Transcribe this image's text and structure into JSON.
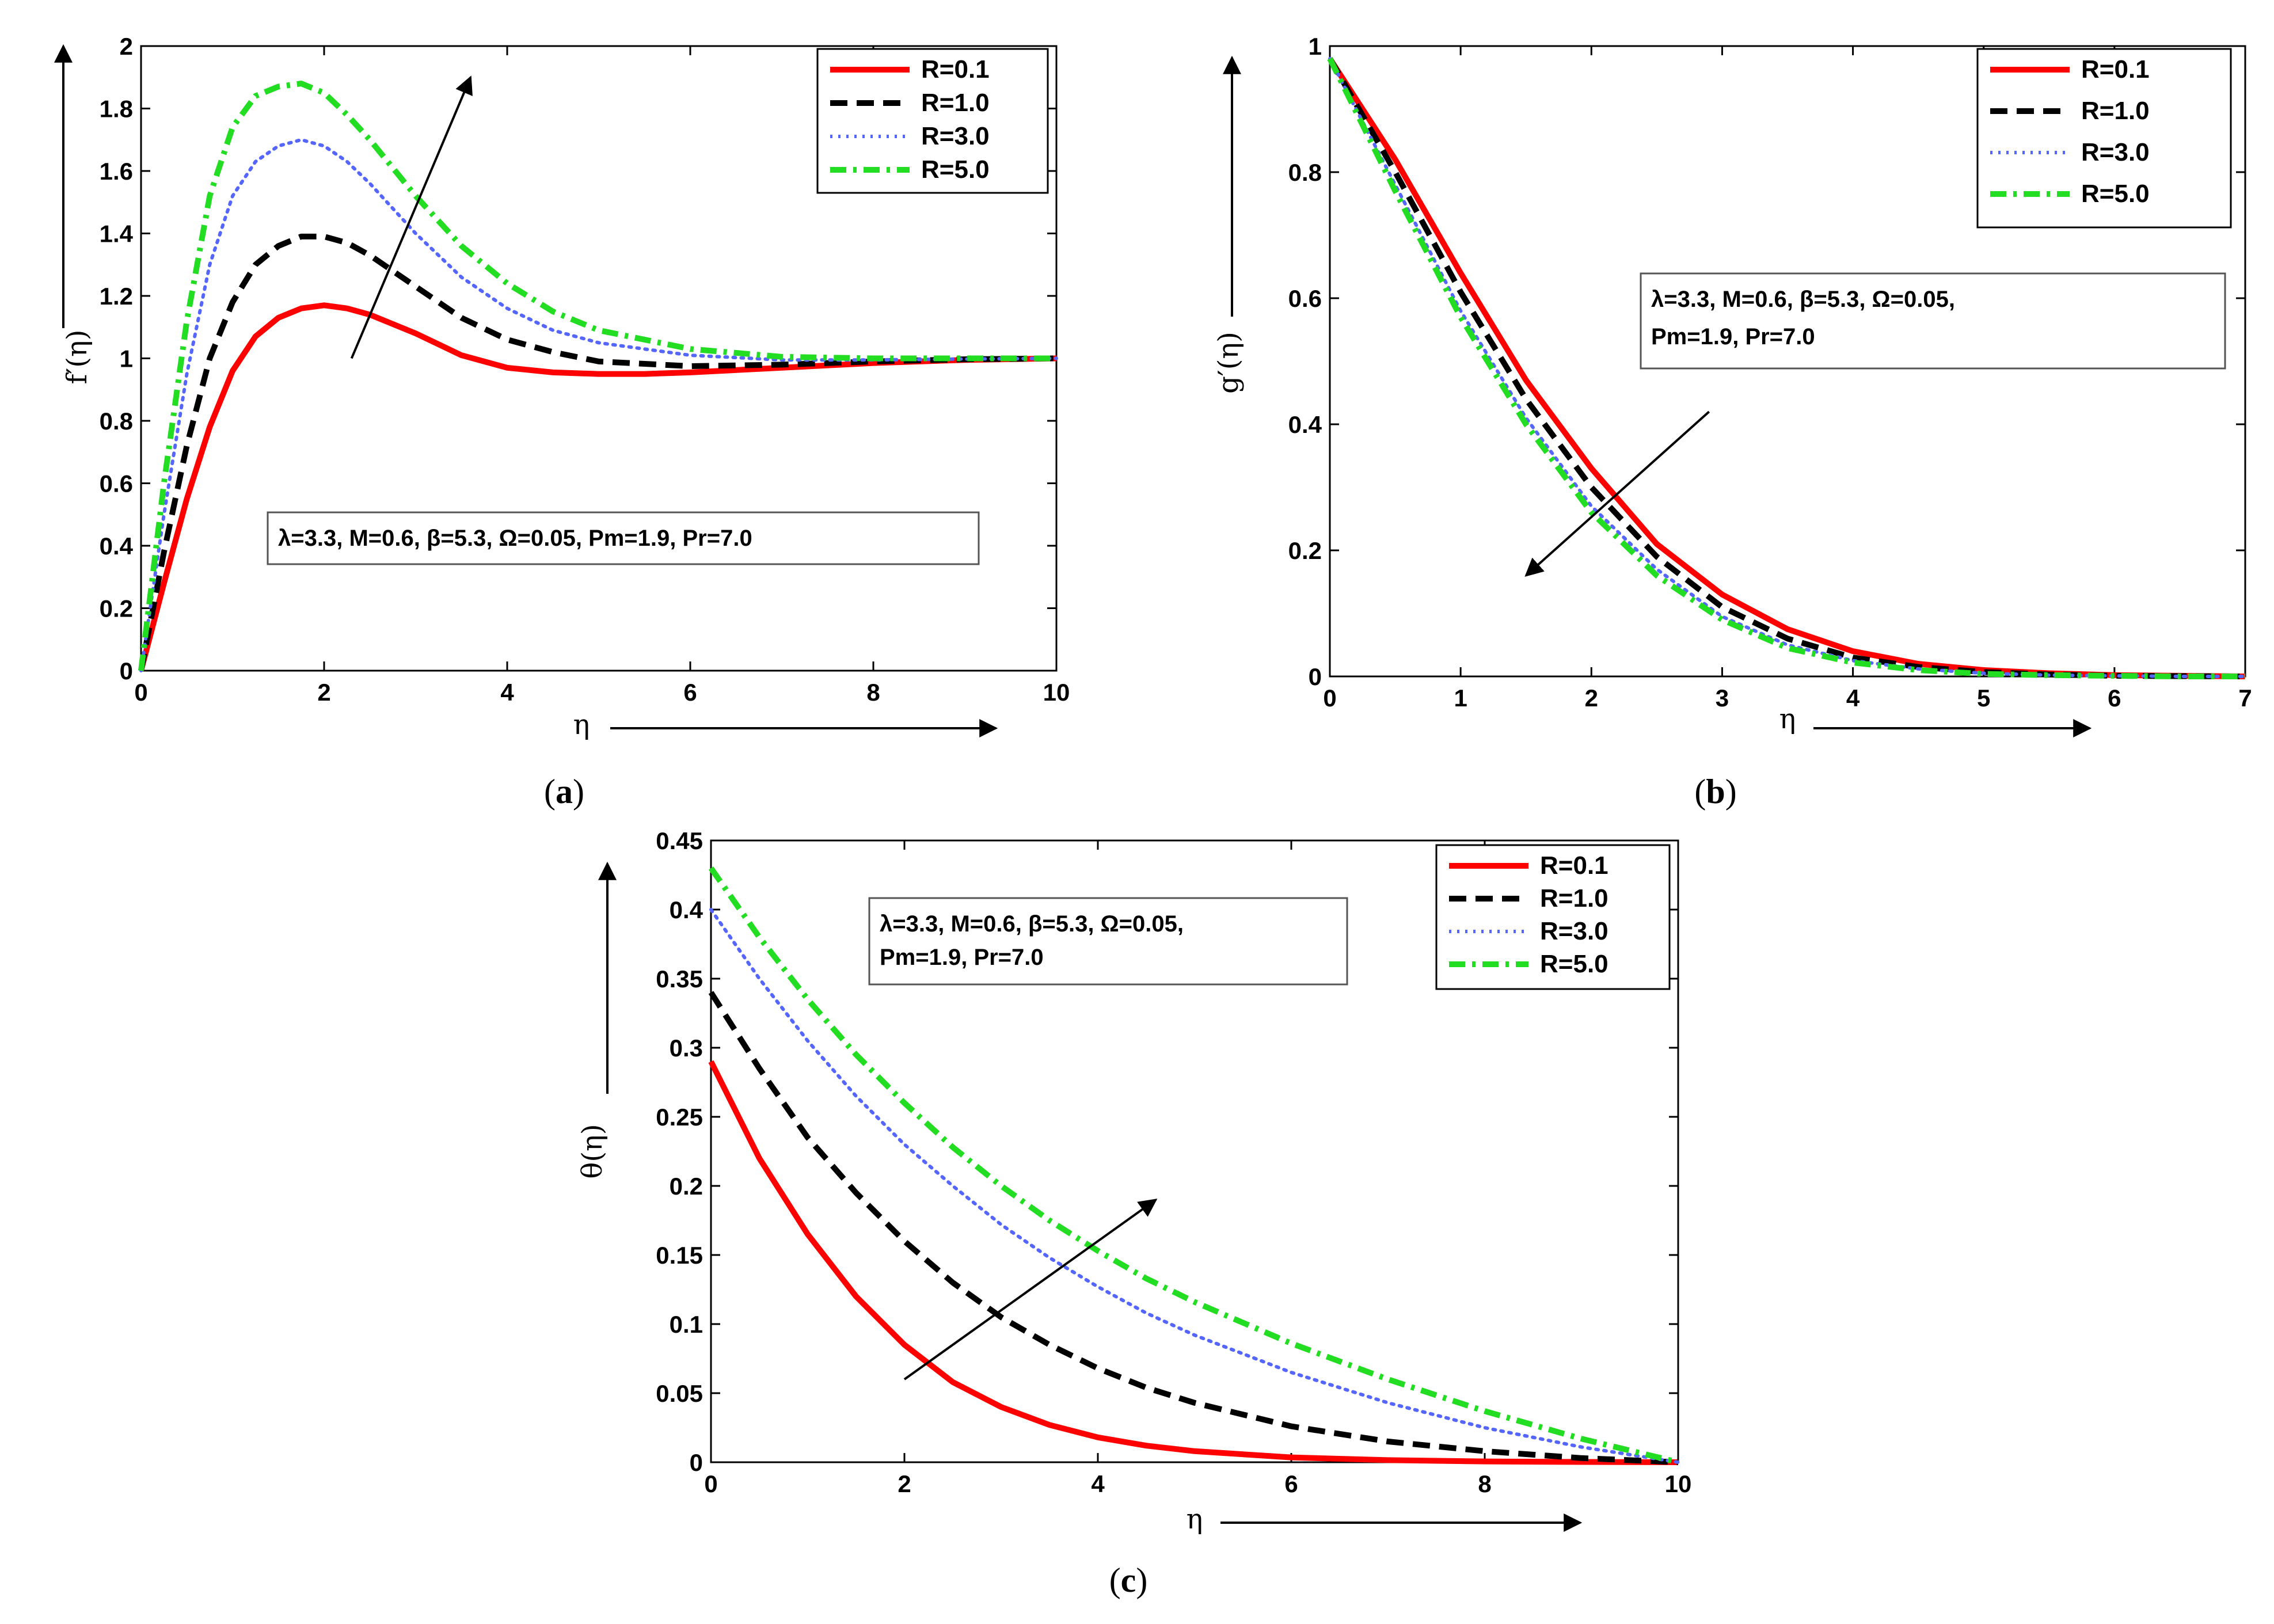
{
  "chart_data": [
    {
      "id": "a",
      "type": "line",
      "caption_letter": "a",
      "xlabel": "η",
      "ylabel": "f′(η)",
      "xlim": [
        0,
        10
      ],
      "ylim": [
        0,
        2
      ],
      "xticks": [
        0,
        2,
        4,
        6,
        8,
        10
      ],
      "yticks": [
        0,
        0.2,
        0.4,
        0.6,
        0.8,
        1,
        1.2,
        1.4,
        1.6,
        1.8,
        2
      ],
      "ytick_labels": [
        "0",
        "0.2",
        "0.4",
        "0.6",
        "0.8",
        "1",
        "1.2",
        "1.4",
        "1.6",
        "1.8",
        "2"
      ],
      "annotation": [
        "λ=3.3, M=0.6, β=5.3, Ω=0.05, Pm=1.9, Pr=7.0"
      ],
      "arrow": {
        "from": [
          2.3,
          1.0
        ],
        "to": [
          3.6,
          1.9
        ]
      },
      "legend_position": "top-right",
      "series": [
        {
          "name": "R=0.1",
          "color": "#ff0000",
          "style": "solid",
          "x": [
            0,
            0.25,
            0.5,
            0.75,
            1,
            1.25,
            1.5,
            1.75,
            2,
            2.25,
            2.5,
            3,
            3.5,
            4,
            4.5,
            5,
            5.5,
            6,
            7,
            8,
            9,
            10
          ],
          "y": [
            0,
            0.28,
            0.55,
            0.78,
            0.96,
            1.07,
            1.13,
            1.16,
            1.17,
            1.16,
            1.14,
            1.08,
            1.01,
            0.97,
            0.955,
            0.95,
            0.95,
            0.955,
            0.97,
            0.985,
            0.995,
            1.0
          ]
        },
        {
          "name": "R=1.0",
          "color": "#000000",
          "style": "dashed",
          "x": [
            0,
            0.25,
            0.5,
            0.75,
            1,
            1.25,
            1.5,
            1.75,
            2,
            2.25,
            2.5,
            3,
            3.5,
            4,
            4.5,
            5,
            6,
            7,
            8,
            9,
            10
          ],
          "y": [
            0,
            0.38,
            0.72,
            1.0,
            1.18,
            1.3,
            1.36,
            1.39,
            1.39,
            1.37,
            1.33,
            1.23,
            1.13,
            1.06,
            1.02,
            0.99,
            0.975,
            0.98,
            0.99,
            0.997,
            1.0
          ]
        },
        {
          "name": "R=3.0",
          "color": "#5566ff",
          "style": "dotted",
          "x": [
            0,
            0.25,
            0.5,
            0.75,
            1,
            1.25,
            1.5,
            1.75,
            2,
            2.25,
            2.5,
            3,
            3.5,
            4,
            4.5,
            5,
            6,
            7,
            8,
            9,
            10
          ],
          "y": [
            0,
            0.5,
            0.95,
            1.3,
            1.52,
            1.63,
            1.68,
            1.7,
            1.68,
            1.63,
            1.56,
            1.4,
            1.26,
            1.16,
            1.09,
            1.05,
            1.01,
            0.995,
            0.995,
            0.998,
            1.0
          ]
        },
        {
          "name": "R=5.0",
          "color": "#22dd22",
          "style": "dashdot",
          "x": [
            0,
            0.25,
            0.5,
            0.75,
            1,
            1.25,
            1.5,
            1.75,
            2,
            2.25,
            2.5,
            3,
            3.5,
            4,
            4.5,
            5,
            6,
            7,
            8,
            9,
            10
          ],
          "y": [
            0,
            0.6,
            1.12,
            1.52,
            1.74,
            1.84,
            1.87,
            1.88,
            1.85,
            1.78,
            1.7,
            1.52,
            1.36,
            1.24,
            1.15,
            1.09,
            1.03,
            1.005,
            1.0,
            1.0,
            1.0
          ]
        }
      ]
    },
    {
      "id": "b",
      "type": "line",
      "caption_letter": "b",
      "xlabel": "η",
      "ylabel": "g′(η)",
      "xlim": [
        0,
        7
      ],
      "ylim": [
        0,
        1
      ],
      "xticks": [
        0,
        1,
        2,
        3,
        4,
        5,
        6,
        7
      ],
      "yticks": [
        0,
        0.2,
        0.4,
        0.6,
        0.8,
        1
      ],
      "ytick_labels": [
        "0",
        "0.2",
        "0.4",
        "0.6",
        "0.8",
        "1"
      ],
      "annotation": [
        "λ=3.3, M=0.6, β=5.3, Ω=0.05,",
        "Pm=1.9, Pr=7.0"
      ],
      "arrow": {
        "from": [
          2.9,
          0.42
        ],
        "to": [
          1.5,
          0.16
        ]
      },
      "legend_position": "top-right",
      "series": [
        {
          "name": "R=0.1",
          "color": "#ff0000",
          "style": "solid",
          "x": [
            0,
            0.5,
            1,
            1.5,
            2,
            2.5,
            3,
            3.5,
            4,
            4.5,
            5,
            5.5,
            6,
            6.5,
            7
          ],
          "y": [
            0.98,
            0.82,
            0.64,
            0.47,
            0.33,
            0.21,
            0.13,
            0.075,
            0.04,
            0.02,
            0.01,
            0.005,
            0.002,
            0.001,
            0
          ]
        },
        {
          "name": "R=1.0",
          "color": "#000000",
          "style": "dashed",
          "x": [
            0,
            0.5,
            1,
            1.5,
            2,
            2.5,
            3,
            3.5,
            4,
            4.5,
            5,
            5.5,
            6,
            6.5,
            7
          ],
          "y": [
            0.98,
            0.8,
            0.61,
            0.44,
            0.3,
            0.19,
            0.11,
            0.06,
            0.03,
            0.015,
            0.007,
            0.003,
            0.001,
            0.0005,
            0
          ]
        },
        {
          "name": "R=3.0",
          "color": "#5566ff",
          "style": "dotted",
          "x": [
            0,
            0.5,
            1,
            1.5,
            2,
            2.5,
            3,
            3.5,
            4,
            4.5,
            5,
            5.5,
            6,
            6.5,
            7
          ],
          "y": [
            0.98,
            0.78,
            0.58,
            0.41,
            0.27,
            0.17,
            0.095,
            0.05,
            0.025,
            0.012,
            0.005,
            0.002,
            0.001,
            0,
            0
          ]
        },
        {
          "name": "R=5.0",
          "color": "#22dd22",
          "style": "dashdot",
          "x": [
            0,
            0.5,
            1,
            1.5,
            2,
            2.5,
            3,
            3.5,
            4,
            4.5,
            5,
            5.5,
            6,
            6.5,
            7
          ],
          "y": [
            0.98,
            0.77,
            0.57,
            0.4,
            0.26,
            0.16,
            0.09,
            0.045,
            0.022,
            0.01,
            0.004,
            0.002,
            0.001,
            0,
            0
          ]
        }
      ]
    },
    {
      "id": "c",
      "type": "line",
      "caption_letter": "c",
      "xlabel": "η",
      "ylabel": "θ(η)",
      "xlim": [
        0,
        10
      ],
      "ylim": [
        0,
        0.45
      ],
      "xticks": [
        0,
        2,
        4,
        6,
        8,
        10
      ],
      "yticks": [
        0,
        0.05,
        0.1,
        0.15,
        0.2,
        0.25,
        0.3,
        0.35,
        0.4,
        0.45
      ],
      "ytick_labels": [
        "0",
        "0.05",
        "0.1",
        "0.15",
        "0.2",
        "0.25",
        "0.3",
        "0.35",
        "0.4",
        "0.45"
      ],
      "annotation": [
        "λ=3.3, M=0.6, β=5.3, Ω=0.05,",
        "Pm=1.9, Pr=7.0"
      ],
      "arrow": {
        "from": [
          2.0,
          0.06
        ],
        "to": [
          4.6,
          0.19
        ]
      },
      "legend_position": "top-right",
      "series": [
        {
          "name": "R=0.1",
          "color": "#ff0000",
          "style": "solid",
          "x": [
            0,
            0.5,
            1,
            1.5,
            2,
            2.5,
            3,
            3.5,
            4,
            4.5,
            5,
            6,
            7,
            8,
            9,
            10
          ],
          "y": [
            0.29,
            0.22,
            0.165,
            0.12,
            0.085,
            0.058,
            0.04,
            0.027,
            0.018,
            0.012,
            0.008,
            0.0035,
            0.0015,
            0.0006,
            0.0002,
            0
          ]
        },
        {
          "name": "R=1.0",
          "color": "#000000",
          "style": "dashed",
          "x": [
            0,
            0.5,
            1,
            1.5,
            2,
            2.5,
            3,
            3.5,
            4,
            4.5,
            5,
            6,
            7,
            8,
            9,
            10
          ],
          "y": [
            0.34,
            0.285,
            0.235,
            0.195,
            0.16,
            0.13,
            0.105,
            0.085,
            0.068,
            0.054,
            0.043,
            0.026,
            0.015,
            0.008,
            0.003,
            0
          ]
        },
        {
          "name": "R=3.0",
          "color": "#5566ff",
          "style": "dotted",
          "x": [
            0,
            0.5,
            1,
            1.5,
            2,
            2.5,
            3,
            3.5,
            4,
            4.5,
            5,
            6,
            7,
            8,
            9,
            10
          ],
          "y": [
            0.4,
            0.35,
            0.305,
            0.265,
            0.23,
            0.2,
            0.172,
            0.148,
            0.127,
            0.108,
            0.092,
            0.065,
            0.043,
            0.025,
            0.011,
            0
          ]
        },
        {
          "name": "R=5.0",
          "color": "#22dd22",
          "style": "dashdot",
          "x": [
            0,
            0.5,
            1,
            1.5,
            2,
            2.5,
            3,
            3.5,
            4,
            4.5,
            5,
            6,
            7,
            8,
            9,
            10
          ],
          "y": [
            0.43,
            0.38,
            0.335,
            0.295,
            0.26,
            0.228,
            0.2,
            0.175,
            0.153,
            0.133,
            0.116,
            0.086,
            0.06,
            0.037,
            0.017,
            0
          ]
        }
      ]
    }
  ]
}
